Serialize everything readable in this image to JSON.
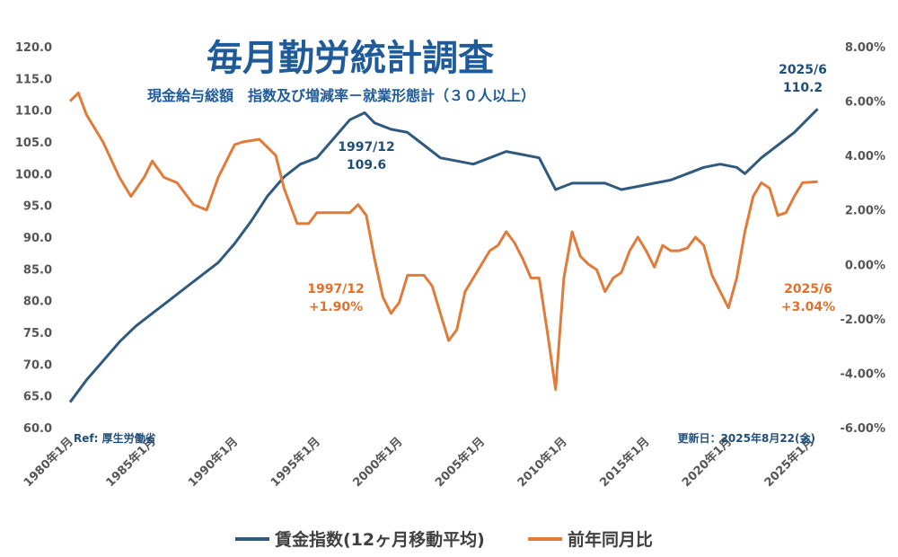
{
  "chart_data": {
    "type": "line",
    "title": "毎月勤労統計調査",
    "subtitle": "現金給与総額　指数及び増減率－就業形態計（３０人以上）",
    "source": "Ref: 厚生労働省",
    "updated": "更新日：2025年8月22(金)",
    "x_tick_labels": [
      "1980年1月",
      "1985年1月",
      "1990年1月",
      "1995年1月",
      "2000年1月",
      "2005年1月",
      "2010年1月",
      "2015年1月",
      "2020年1月",
      "2025年1月"
    ],
    "x_range": [
      1980.0,
      2025.5
    ],
    "y_left": {
      "min": 60,
      "max": 120,
      "ticks": [
        "60.0",
        "65.0",
        "70.0",
        "75.0",
        "80.0",
        "85.0",
        "90.0",
        "95.0",
        "100.0",
        "105.0",
        "110.0",
        "115.0",
        "120.0"
      ]
    },
    "y_right": {
      "min": -6,
      "max": 8,
      "ticks": [
        "-6.00%",
        "-4.00%",
        "-2.00%",
        "0.00%",
        "2.00%",
        "4.00%",
        "6.00%",
        "8.00%"
      ]
    },
    "series": [
      {
        "name": "賃金指数(12ヶ月移動平均)",
        "axis": "left",
        "color": "#2f5a7e",
        "points": [
          [
            1980.0,
            64.0
          ],
          [
            1981.0,
            67.5
          ],
          [
            1982.0,
            70.5
          ],
          [
            1983.0,
            73.5
          ],
          [
            1984.0,
            76.0
          ],
          [
            1985.0,
            78.0
          ],
          [
            1986.0,
            80.0
          ],
          [
            1987.0,
            82.0
          ],
          [
            1988.0,
            84.0
          ],
          [
            1989.0,
            86.0
          ],
          [
            1990.0,
            89.0
          ],
          [
            1991.0,
            92.5
          ],
          [
            1992.0,
            96.5
          ],
          [
            1993.0,
            99.5
          ],
          [
            1994.0,
            101.5
          ],
          [
            1995.0,
            102.5
          ],
          [
            1996.0,
            105.5
          ],
          [
            1997.0,
            108.5
          ],
          [
            1997.9,
            109.6
          ],
          [
            1998.5,
            108.0
          ],
          [
            1999.5,
            107.0
          ],
          [
            2000.5,
            106.5
          ],
          [
            2001.5,
            104.5
          ],
          [
            2002.5,
            102.5
          ],
          [
            2003.5,
            102.0
          ],
          [
            2004.5,
            101.5
          ],
          [
            2005.5,
            102.5
          ],
          [
            2006.5,
            103.5
          ],
          [
            2007.5,
            103.0
          ],
          [
            2008.5,
            102.5
          ],
          [
            2009.5,
            97.5
          ],
          [
            2010.5,
            98.5
          ],
          [
            2011.5,
            98.5
          ],
          [
            2012.5,
            98.5
          ],
          [
            2013.5,
            97.5
          ],
          [
            2014.5,
            98.0
          ],
          [
            2015.5,
            98.5
          ],
          [
            2016.5,
            99.0
          ],
          [
            2017.5,
            100.0
          ],
          [
            2018.5,
            101.0
          ],
          [
            2019.5,
            101.5
          ],
          [
            2020.5,
            101.0
          ],
          [
            2021.0,
            100.0
          ],
          [
            2022.0,
            102.5
          ],
          [
            2023.0,
            104.5
          ],
          [
            2024.0,
            106.5
          ],
          [
            2025.42,
            110.2
          ]
        ]
      },
      {
        "name": "前年同月比",
        "axis": "right",
        "color": "#e07b39",
        "points": [
          [
            1980.0,
            6.0
          ],
          [
            1980.5,
            6.3
          ],
          [
            1981.0,
            5.5
          ],
          [
            1982.0,
            4.5
          ],
          [
            1983.0,
            3.2
          ],
          [
            1983.7,
            2.5
          ],
          [
            1984.5,
            3.2
          ],
          [
            1985.0,
            3.8
          ],
          [
            1985.7,
            3.2
          ],
          [
            1986.5,
            3.0
          ],
          [
            1987.5,
            2.2
          ],
          [
            1988.3,
            2.0
          ],
          [
            1989.0,
            3.2
          ],
          [
            1990.0,
            4.4
          ],
          [
            1990.5,
            4.5
          ],
          [
            1991.5,
            4.6
          ],
          [
            1992.5,
            4.0
          ],
          [
            1993.0,
            2.8
          ],
          [
            1993.8,
            1.5
          ],
          [
            1994.5,
            1.5
          ],
          [
            1995.0,
            1.9
          ],
          [
            1996.0,
            1.9
          ],
          [
            1997.0,
            1.9
          ],
          [
            1997.5,
            2.2
          ],
          [
            1998.0,
            1.8
          ],
          [
            1998.5,
            0.2
          ],
          [
            1999.0,
            -1.2
          ],
          [
            1999.5,
            -1.8
          ],
          [
            2000.0,
            -1.4
          ],
          [
            2000.5,
            -0.4
          ],
          [
            2001.5,
            -0.4
          ],
          [
            2002.0,
            -0.8
          ],
          [
            2002.5,
            -1.8
          ],
          [
            2003.0,
            -2.8
          ],
          [
            2003.5,
            -2.4
          ],
          [
            2004.0,
            -1.0
          ],
          [
            2004.5,
            -0.5
          ],
          [
            2005.0,
            0.0
          ],
          [
            2005.5,
            0.5
          ],
          [
            2006.0,
            0.7
          ],
          [
            2006.5,
            1.2
          ],
          [
            2007.0,
            0.8
          ],
          [
            2007.5,
            0.2
          ],
          [
            2008.0,
            -0.5
          ],
          [
            2008.5,
            -0.5
          ],
          [
            2009.0,
            -2.5
          ],
          [
            2009.5,
            -4.6
          ],
          [
            2010.0,
            -0.5
          ],
          [
            2010.5,
            1.2
          ],
          [
            2011.0,
            0.3
          ],
          [
            2011.5,
            0.0
          ],
          [
            2012.0,
            -0.2
          ],
          [
            2012.5,
            -1.0
          ],
          [
            2013.0,
            -0.5
          ],
          [
            2013.5,
            -0.3
          ],
          [
            2014.0,
            0.5
          ],
          [
            2014.5,
            1.0
          ],
          [
            2015.0,
            0.5
          ],
          [
            2015.5,
            -0.1
          ],
          [
            2016.0,
            0.7
          ],
          [
            2016.5,
            0.5
          ],
          [
            2017.0,
            0.5
          ],
          [
            2017.5,
            0.6
          ],
          [
            2018.0,
            1.0
          ],
          [
            2018.5,
            0.7
          ],
          [
            2019.0,
            -0.4
          ],
          [
            2019.5,
            -1.0
          ],
          [
            2020.0,
            -1.6
          ],
          [
            2020.5,
            -0.5
          ],
          [
            2021.0,
            1.2
          ],
          [
            2021.5,
            2.5
          ],
          [
            2022.0,
            3.0
          ],
          [
            2022.5,
            2.8
          ],
          [
            2023.0,
            1.8
          ],
          [
            2023.5,
            1.9
          ],
          [
            2024.0,
            2.5
          ],
          [
            2024.5,
            3.0
          ],
          [
            2025.42,
            3.04
          ]
        ]
      }
    ],
    "annotations": [
      {
        "series": "賃金指数(12ヶ月移動平均)",
        "line1": "1997/12",
        "line2": "109.6"
      },
      {
        "series": "賃金指数(12ヶ月移動平均)",
        "line1": "2025/6",
        "line2": "110.2"
      },
      {
        "series": "前年同月比",
        "line1": "1997/12",
        "line2": "+1.90%"
      },
      {
        "series": "前年同月比",
        "line1": "2025/6",
        "line2": "+3.04%"
      }
    ]
  }
}
